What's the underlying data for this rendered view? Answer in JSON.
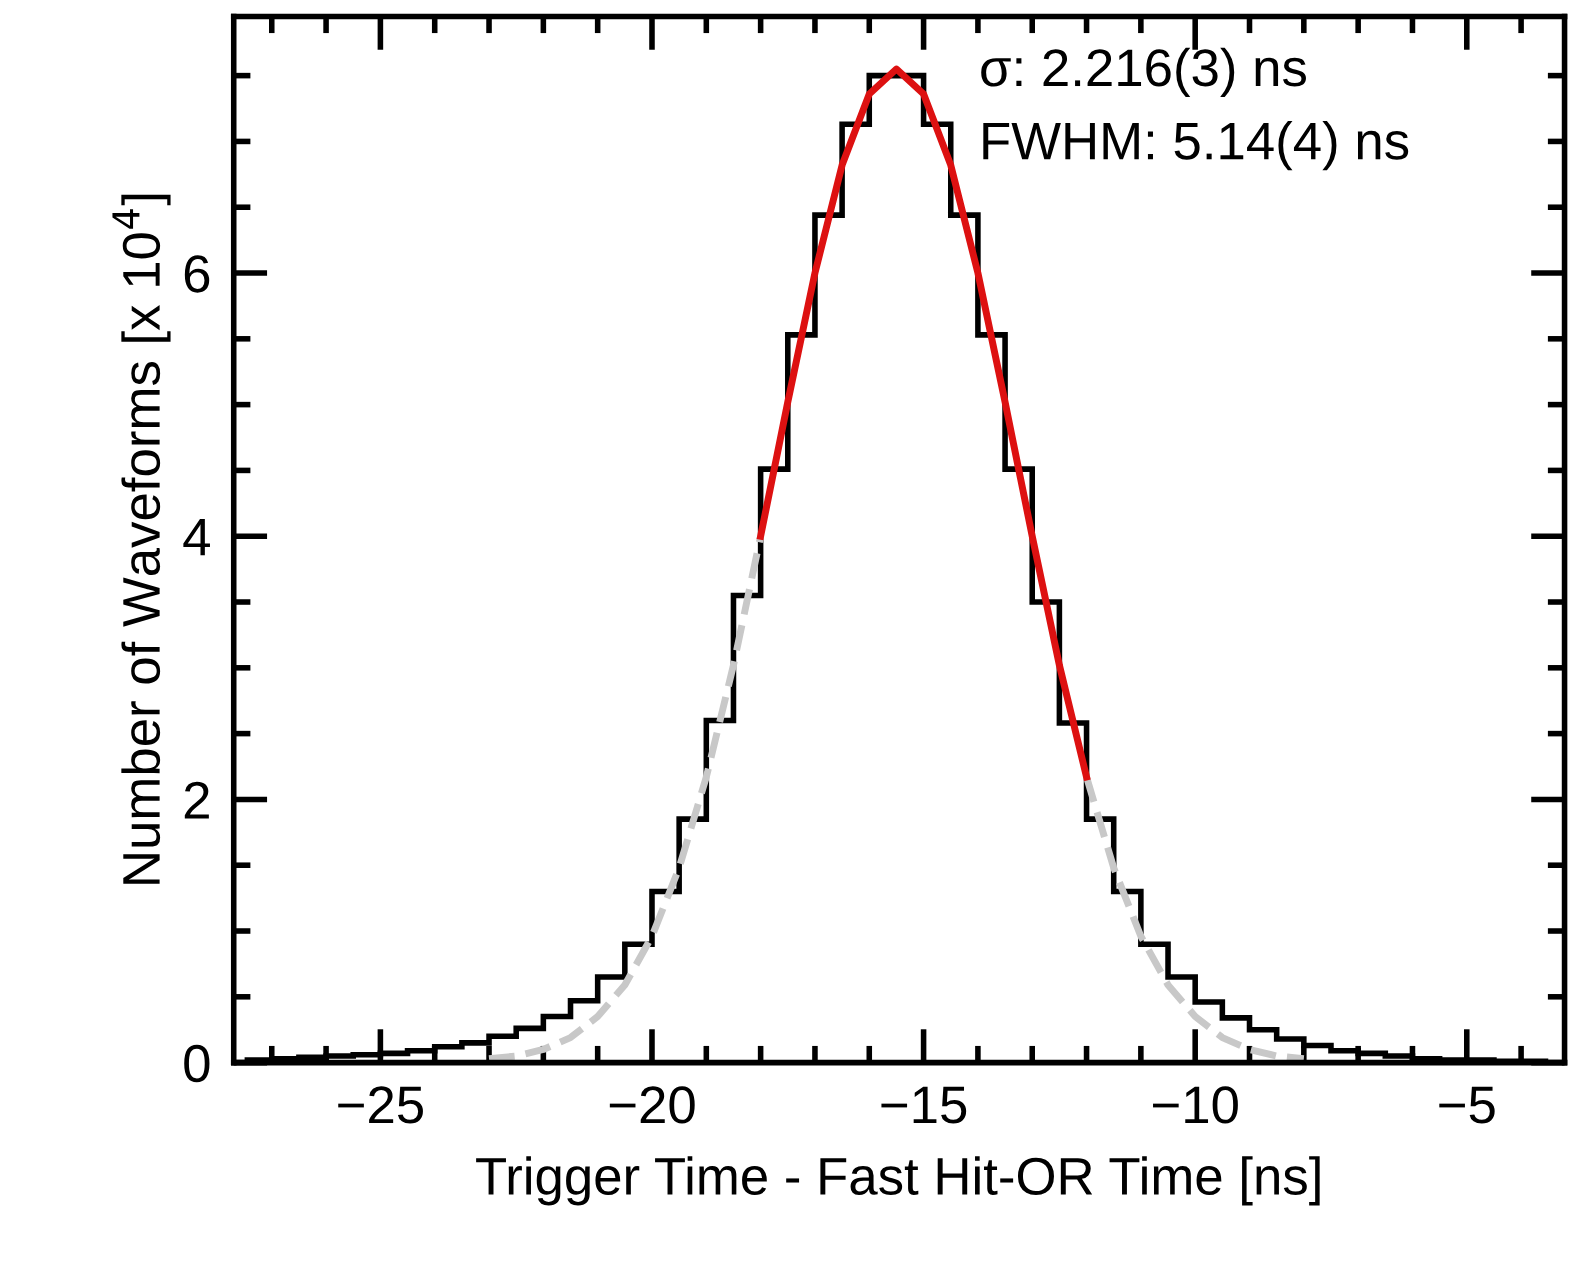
{
  "chart_data": {
    "type": "histogram",
    "xlabel": "Trigger Time - Fast Hit-OR Time [ns]",
    "ylabel": "Number of Waveforms [x 10$^{4}$]",
    "bins": [
      -27.5,
      -27,
      -26.5,
      -26,
      -25.5,
      -25,
      -24.5,
      -24,
      -23.5,
      -23,
      -22.5,
      -22,
      -21.5,
      -21,
      -20.5,
      -20,
      -19.5,
      -19,
      -18.5,
      -18,
      -17.5,
      -17,
      -16.5,
      -16,
      -15.5,
      -15,
      -14.5,
      -14,
      -13.5,
      -13,
      -12.5,
      -12,
      -11.5,
      -11,
      -10.5,
      -10,
      -9.5,
      -9,
      -8.5,
      -8,
      -7.5,
      -7,
      -6.5,
      -6,
      -5.5,
      -5,
      -4.5,
      -4,
      -3.5
    ],
    "values": [
      0.02,
      0.03,
      0.04,
      0.05,
      0.06,
      0.07,
      0.09,
      0.12,
      0.15,
      0.2,
      0.26,
      0.35,
      0.47,
      0.65,
      0.9,
      1.3,
      1.85,
      2.6,
      3.55,
      4.51,
      5.53,
      6.44,
      7.13,
      7.5,
      7.5,
      7.13,
      6.44,
      5.53,
      4.51,
      3.5,
      2.58,
      1.85,
      1.3,
      0.9,
      0.65,
      0.46,
      0.34,
      0.25,
      0.18,
      0.13,
      0.09,
      0.07,
      0.05,
      0.03,
      0.02,
      0.02,
      0.01,
      0.01
    ],
    "color": "#000000",
    "series": [
      {
        "type": "line",
        "color": "#c8c8c8",
        "line_style": "dashed",
        "x": [
          -23,
          -22.5,
          -22,
          -21.5,
          -21,
          -20.5,
          -20,
          -19.5,
          -19,
          -18.5,
          -18,
          -17.5,
          -17,
          -16.5,
          -16,
          -15.5,
          -15,
          -14.5,
          -14,
          -13.5,
          -13,
          -12.5,
          -12,
          -11.5,
          -11,
          -10.5,
          -10,
          -9.5,
          -9,
          -8.5,
          -8
        ],
        "values": [
          0.03,
          0.05,
          0.1,
          0.19,
          0.35,
          0.59,
          0.96,
          1.48,
          2.17,
          3.02,
          4.0,
          null,
          null,
          null,
          null,
          null,
          null,
          null,
          null,
          null,
          null,
          null,
          2.17,
          1.48,
          0.96,
          0.59,
          0.35,
          0.19,
          0.1,
          0.05,
          0.03
        ]
      },
      {
        "type": "line",
        "color": "#dd1111",
        "line_style": "solid",
        "x": [
          -18,
          -17.5,
          -17,
          -16.5,
          -16,
          -15.5,
          -15,
          -14.5,
          -14,
          -13.5,
          -13,
          -12.5,
          -12
        ],
        "values": [
          4.0,
          5.02,
          6.0,
          6.82,
          7.36,
          7.55,
          7.36,
          6.82,
          6.0,
          5.02,
          4.0,
          3.02,
          2.17
        ]
      }
    ],
    "xlim": [
      -27.7,
      -3.2
    ],
    "ylim": [
      0,
      7.95
    ],
    "xticks": [
      {
        "value": -25,
        "label": "−25"
      },
      {
        "value": -20,
        "label": "−20"
      },
      {
        "value": -15,
        "label": "−15"
      },
      {
        "value": -10,
        "label": "−10"
      },
      {
        "value": -5,
        "label": "−5"
      }
    ],
    "yticks": [
      0,
      2,
      4,
      6
    ],
    "annotations": [
      "σ: 2.216(3) ns",
      "FWHM: 5.14(4) ns"
    ],
    "grid": false,
    "legend": false
  }
}
